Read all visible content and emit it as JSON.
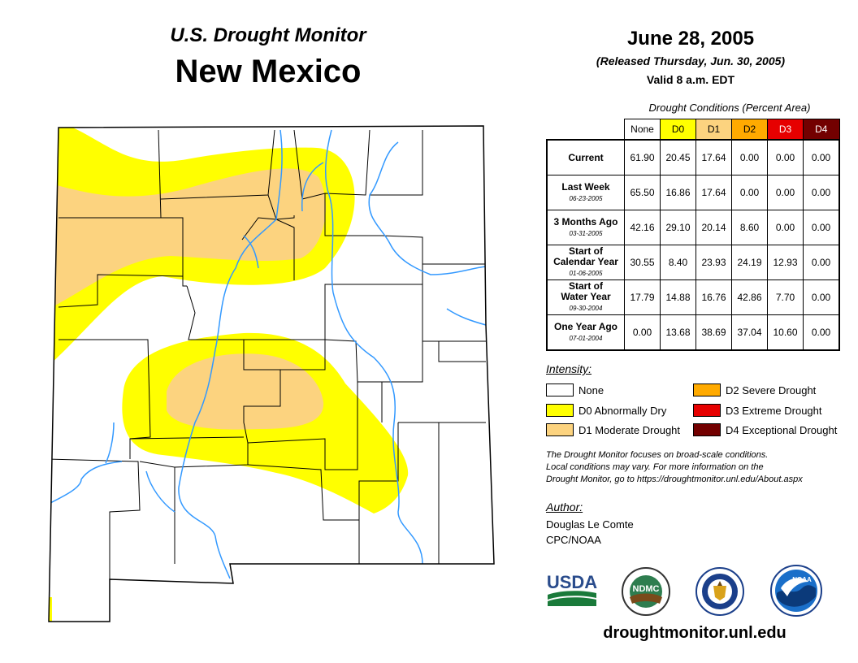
{
  "header": {
    "subtitle": "U.S. Drought Monitor",
    "state": "New Mexico"
  },
  "report": {
    "date": "June 28, 2005",
    "released": "(Released Thursday, Jun. 30, 2005)",
    "valid": "Valid 8 a.m. EDT"
  },
  "table": {
    "caption": "Drought Conditions (Percent Area)",
    "columns": [
      "None",
      "D0",
      "D1",
      "D2",
      "D3",
      "D4"
    ],
    "column_colors": [
      "#ffffff",
      "#ffff00",
      "#fcd37f",
      "#ffaa00",
      "#e60000",
      "#730000"
    ],
    "rows": [
      {
        "label": "Current",
        "label2": "",
        "date": "",
        "values": [
          "61.90",
          "20.45",
          "17.64",
          "0.00",
          "0.00",
          "0.00"
        ]
      },
      {
        "label": "Last Week",
        "label2": "",
        "date": "06-23-2005",
        "values": [
          "65.50",
          "16.86",
          "17.64",
          "0.00",
          "0.00",
          "0.00"
        ]
      },
      {
        "label": "3 Months Ago",
        "label2": "",
        "date": "03-31-2005",
        "values": [
          "42.16",
          "29.10",
          "20.14",
          "8.60",
          "0.00",
          "0.00"
        ]
      },
      {
        "label": "Start of",
        "label2": "Calendar Year",
        "date": "01-06-2005",
        "values": [
          "30.55",
          "8.40",
          "23.93",
          "24.19",
          "12.93",
          "0.00"
        ]
      },
      {
        "label": "Start of",
        "label2": "Water Year",
        "date": "09-30-2004",
        "values": [
          "17.79",
          "14.88",
          "16.76",
          "42.86",
          "7.70",
          "0.00"
        ]
      },
      {
        "label": "One Year Ago",
        "label2": "",
        "date": "07-01-2004",
        "values": [
          "0.00",
          "13.68",
          "38.69",
          "37.04",
          "10.60",
          "0.00"
        ]
      }
    ]
  },
  "legend": {
    "title": "Intensity:",
    "items": [
      {
        "label": "None",
        "color": "#ffffff"
      },
      {
        "label": "D0 Abnormally Dry",
        "color": "#ffff00"
      },
      {
        "label": "D1 Moderate Drought",
        "color": "#fcd37f"
      },
      {
        "label": "D2 Severe Drought",
        "color": "#ffaa00"
      },
      {
        "label": "D3 Extreme Drought",
        "color": "#e60000"
      },
      {
        "label": "D4 Exceptional Drought",
        "color": "#730000"
      }
    ]
  },
  "note": {
    "line1": "The Drought Monitor focuses on broad-scale conditions.",
    "line2": "Local conditions may vary. For more information on the",
    "line3": "Drought Monitor, go to https://droughtmonitor.unl.edu/About.aspx"
  },
  "author": {
    "label": "Author:",
    "name": "Douglas Le Comte",
    "org": "CPC/NOAA"
  },
  "logos": {
    "usda": "USDA",
    "ndmc": "NDMC",
    "noaa": "NOAA"
  },
  "footer": {
    "url": "droughtmonitor.unl.edu"
  },
  "map": {
    "river_color": "#3399ff",
    "border_color": "#000000"
  }
}
